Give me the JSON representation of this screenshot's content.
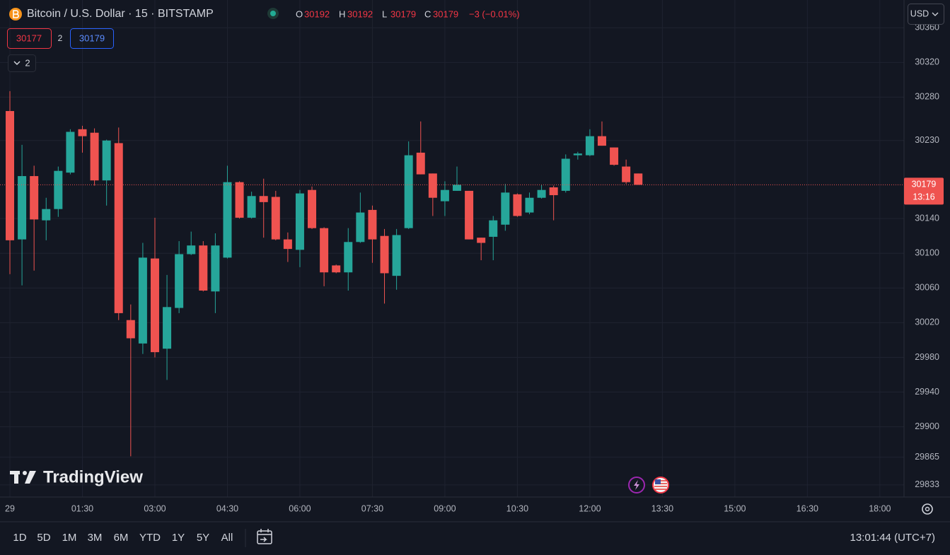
{
  "header": {
    "symbol_title": "Bitcoin / U.S. Dollar · 15 · BITSTAMP",
    "ohlc": [
      {
        "label": "O",
        "value": 30192
      },
      {
        "label": "H",
        "value": 30192
      },
      {
        "label": "L",
        "value": 30179
      },
      {
        "label": "C",
        "value": 30179
      }
    ],
    "change": "−3 (−0.01%)"
  },
  "order": {
    "sell": 30177,
    "spread": 2,
    "buy": 30179
  },
  "indicators_toggle": 2,
  "currency": "USD",
  "logo": "TradingView",
  "chart_data": {
    "type": "candlestick",
    "x": [
      0,
      0.25,
      0.5,
      0.75,
      1,
      1.25,
      1.5,
      1.75,
      2,
      2.25,
      2.5,
      2.75,
      3,
      3.25,
      3.5,
      3.75,
      4,
      4.25,
      4.5,
      4.75,
      5,
      5.25,
      5.5,
      5.75,
      6,
      6.25,
      6.5,
      6.75,
      7,
      7.25,
      7.5,
      7.75,
      8,
      8.25,
      8.5,
      8.75,
      9,
      9.25,
      9.5,
      9.75,
      10,
      10.25,
      10.5,
      10.75,
      11,
      11.25,
      11.5,
      11.75,
      12,
      12.25,
      12.5,
      12.75,
      13
    ],
    "open": [
      30264,
      30116,
      30189,
      30138,
      30151,
      30193,
      30243,
      30239,
      30184,
      30227,
      30023,
      29996,
      30094,
      29990,
      30037,
      30099,
      30109,
      30056,
      30095,
      30182,
      30141,
      30166,
      30165,
      30116,
      30104,
      30173,
      30129,
      30086,
      30078,
      30113,
      30150,
      30120,
      30074,
      30129,
      30216,
      30192,
      30160,
      30172,
      30172,
      30118,
      30119,
      30133,
      30168,
      30147,
      30164,
      30176,
      30172,
      30213,
      30213,
      30235,
      30222,
      30200,
      30192
    ],
    "high": [
      30287,
      30225,
      30201,
      30164,
      30200,
      30243,
      30247,
      30244,
      30231,
      30245,
      30041,
      30112,
      30141,
      30075,
      30114,
      30125,
      30114,
      30123,
      30201,
      30183,
      30171,
      30186,
      30172,
      30124,
      30173,
      30177,
      30130,
      30087,
      30129,
      30170,
      30155,
      30128,
      30128,
      30229,
      30252,
      30192,
      30183,
      30200,
      30172,
      30118,
      30143,
      30180,
      30169,
      30170,
      30179,
      30178,
      30214,
      30217,
      30243,
      30252,
      30222,
      30208,
      30192
    ],
    "low": [
      30076,
      30063,
      30080,
      30115,
      30142,
      30191,
      30216,
      30178,
      30155,
      30023,
      29866,
      29984,
      29980,
      29954,
      30031,
      30098,
      30056,
      30031,
      30094,
      30140,
      30140,
      30118,
      30115,
      30090,
      30084,
      30128,
      30062,
      30077,
      30057,
      30112,
      30089,
      30042,
      30058,
      30128,
      30191,
      30143,
      30143,
      30172,
      30116,
      30092,
      30092,
      30126,
      30142,
      30145,
      30163,
      30138,
      30170,
      30208,
      30212,
      30224,
      30201,
      30180,
      30179
    ],
    "close": [
      30115,
      30189,
      30139,
      30151,
      30195,
      30240,
      30235,
      30184,
      30230,
      30031,
      30002,
      30095,
      29986,
      30038,
      30099,
      30109,
      30057,
      30109,
      30182,
      30141,
      30166,
      30159,
      30116,
      30105,
      30169,
      30129,
      30078,
      30078,
      30113,
      30147,
      30116,
      30077,
      30121,
      30213,
      30191,
      30164,
      30173,
      30179,
      30116,
      30112,
      30138,
      30170,
      30143,
      30164,
      30173,
      30167,
      30209,
      30215,
      30235,
      30224,
      30202,
      30182,
      30179
    ],
    "up_color": "#26a69a",
    "down_color": "#ef5350",
    "xlim": [
      -0.205,
      18.5
    ],
    "xticks": [
      {
        "value": 0,
        "label": "29"
      },
      {
        "value": 1.5,
        "label": "01:30"
      },
      {
        "value": 3,
        "label": "03:00"
      },
      {
        "value": 4.5,
        "label": "04:30"
      },
      {
        "value": 6,
        "label": "06:00"
      },
      {
        "value": 7.5,
        "label": "07:30"
      },
      {
        "value": 9,
        "label": "09:00"
      },
      {
        "value": 10.5,
        "label": "10:30"
      },
      {
        "value": 12,
        "label": "12:00"
      },
      {
        "value": 13.5,
        "label": "13:30"
      },
      {
        "value": 15,
        "label": "15:00"
      },
      {
        "value": 16.5,
        "label": "16:30"
      },
      {
        "value": 18,
        "label": "18:00"
      }
    ],
    "ylim": [
      29819,
      30392
    ],
    "yticks": [
      30360,
      30320,
      30280,
      30230,
      30140,
      30100,
      30060,
      30020,
      29980,
      29940,
      29900,
      29865,
      29833
    ],
    "grid": true,
    "last_price": {
      "value": 30179,
      "countdown": "13:16"
    }
  },
  "timeframes": [
    "1D",
    "5D",
    "1M",
    "3M",
    "6M",
    "YTD",
    "1Y",
    "5Y",
    "All"
  ],
  "clock": "13:01:44 (UTC+7)"
}
